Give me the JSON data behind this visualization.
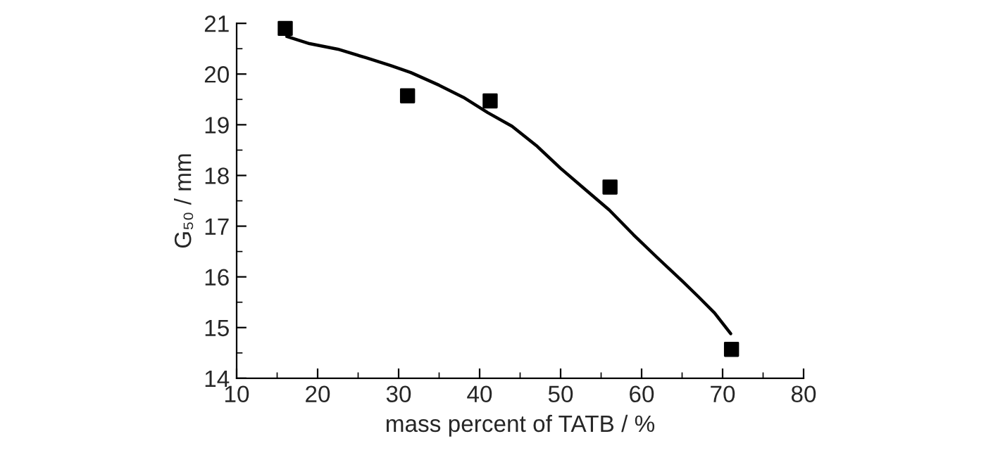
{
  "chart_data": {
    "type": "scatter",
    "xlabel": "mass percent of TATB / %",
    "ylabel": "G₅₀ / mm",
    "xlim": [
      10,
      80
    ],
    "xticks": [
      10,
      20,
      30,
      40,
      50,
      60,
      70,
      80
    ],
    "ylim": [
      14,
      21
    ],
    "yticks": [
      14,
      15,
      16,
      17,
      18,
      19,
      20,
      21
    ],
    "grid": false,
    "legend": false,
    "series": [
      {
        "color": "#000000",
        "marker": "square",
        "x": [
          16,
          31.1,
          41.3,
          56.1,
          71.1
        ],
        "values": [
          20.9,
          19.57,
          19.47,
          17.77,
          14.57
        ]
      },
      {
        "type": "line",
        "color": "#000000",
        "marker": "none",
        "line_style": "solid",
        "x": [
          16.2,
          19,
          22.5,
          26,
          29,
          31.5,
          35,
          38,
          41,
          44,
          47,
          50,
          53,
          56,
          59,
          62,
          65,
          67,
          69,
          71
        ],
        "values": [
          20.74,
          20.6,
          20.49,
          20.32,
          20.17,
          20.03,
          19.78,
          19.54,
          19.24,
          18.97,
          18.59,
          18.14,
          17.73,
          17.32,
          16.83,
          16.37,
          15.92,
          15.61,
          15.29,
          14.88
        ]
      }
    ]
  }
}
